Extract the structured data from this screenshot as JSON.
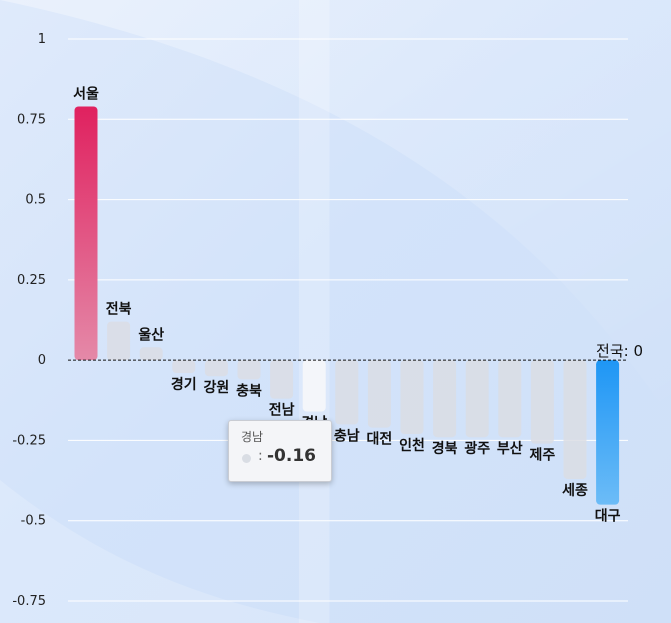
{
  "chart_data": {
    "type": "bar",
    "title": "",
    "xlabel": "",
    "ylabel": "",
    "ylim": [
      -0.75,
      1
    ],
    "yticks": [
      1,
      0.75,
      0.5,
      0.25,
      0,
      -0.25,
      -0.5,
      -0.75
    ],
    "ytick_labels": [
      "1",
      "0.75",
      "0.5",
      "0.25",
      "0",
      "-0.25",
      "-0.5",
      "-0.75"
    ],
    "grid": true,
    "categories": [
      "서울",
      "전북",
      "울산",
      "경기",
      "강원",
      "충북",
      "전남",
      "경남",
      "충남",
      "대전",
      "인천",
      "경북",
      "광주",
      "부산",
      "제주",
      "세종",
      "대구"
    ],
    "values": [
      0.79,
      0.12,
      0.04,
      -0.04,
      -0.05,
      -0.06,
      -0.12,
      -0.16,
      -0.2,
      -0.21,
      -0.23,
      -0.24,
      -0.24,
      -0.24,
      -0.26,
      -0.37,
      -0.45
    ],
    "reference_line": {
      "label": "전국",
      "value": 0,
      "display": "전국: 0"
    },
    "tooltip": {
      "category": "경남",
      "value_text": "-0.16",
      "colon": ":"
    },
    "colors": {
      "top_positive": "#e0215f",
      "top_negative": "#1e96f5",
      "other_bars": "#dadde4",
      "grid": "#ffffff"
    }
  }
}
